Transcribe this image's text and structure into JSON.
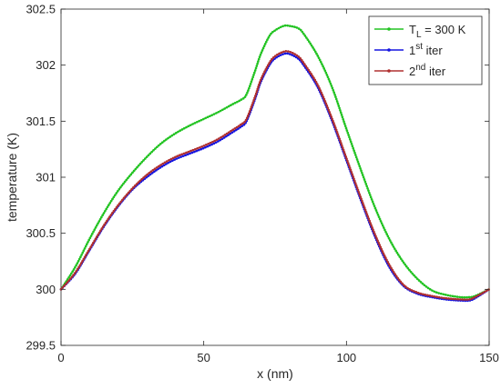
{
  "chart_data": {
    "type": "line",
    "xlabel": "x (nm)",
    "ylabel": "temperature (K)",
    "xlim": [
      0,
      150
    ],
    "ylim": [
      299.5,
      302.5
    ],
    "x_ticks": [
      "0",
      "50",
      "100",
      "150"
    ],
    "y_ticks": [
      "299.5",
      "300",
      "300.5",
      "301",
      "301.5",
      "302",
      "302.5"
    ],
    "legend_position": "top-right",
    "series": [
      {
        "name_parts": {
          "base": "T",
          "sub": "L",
          "rest": " = 300 K"
        },
        "color": "#22c322",
        "x": [
          0,
          5,
          10,
          15,
          20,
          25,
          30,
          35,
          40,
          45,
          50,
          55,
          60,
          63,
          65,
          68,
          70,
          73,
          75,
          78,
          80,
          83,
          85,
          90,
          95,
          100,
          105,
          110,
          115,
          120,
          125,
          130,
          135,
          140,
          143,
          145,
          150
        ],
        "y": [
          300.0,
          300.2,
          300.45,
          300.68,
          300.88,
          301.04,
          301.18,
          301.3,
          301.39,
          301.46,
          301.52,
          301.58,
          301.65,
          301.69,
          301.74,
          301.95,
          302.1,
          302.26,
          302.31,
          302.35,
          302.35,
          302.33,
          302.28,
          302.08,
          301.8,
          301.43,
          301.07,
          300.73,
          300.45,
          300.24,
          300.09,
          299.99,
          299.95,
          299.93,
          299.93,
          299.94,
          300.0
        ]
      },
      {
        "name_parts": {
          "base": "1",
          "sup": "st",
          "rest": " iter"
        },
        "color": "#1515e0",
        "x": [
          0,
          5,
          10,
          15,
          20,
          25,
          30,
          35,
          40,
          45,
          50,
          55,
          60,
          63,
          65,
          68,
          70,
          73,
          75,
          78,
          80,
          83,
          85,
          90,
          95,
          100,
          105,
          110,
          115,
          120,
          125,
          130,
          135,
          140,
          143,
          145,
          150
        ],
        "y": [
          300.0,
          300.14,
          300.35,
          300.56,
          300.74,
          300.89,
          301.0,
          301.09,
          301.16,
          301.21,
          301.26,
          301.32,
          301.4,
          301.45,
          301.5,
          301.7,
          301.85,
          302.0,
          302.06,
          302.1,
          302.1,
          302.06,
          302.0,
          301.8,
          301.5,
          301.15,
          300.8,
          300.47,
          300.2,
          300.03,
          299.96,
          299.93,
          299.91,
          299.9,
          299.9,
          299.92,
          300.0
        ]
      },
      {
        "name_parts": {
          "base": "2",
          "sup": "nd",
          "rest": " iter"
        },
        "color": "#b03030",
        "x": [
          0,
          5,
          10,
          15,
          20,
          25,
          30,
          35,
          40,
          45,
          50,
          55,
          60,
          63,
          65,
          68,
          70,
          73,
          75,
          78,
          80,
          83,
          85,
          90,
          95,
          100,
          105,
          110,
          115,
          120,
          125,
          130,
          135,
          140,
          143,
          145,
          150
        ],
        "y": [
          300.0,
          300.15,
          300.36,
          300.57,
          300.75,
          300.9,
          301.02,
          301.11,
          301.18,
          301.23,
          301.28,
          301.34,
          301.42,
          301.47,
          301.52,
          301.72,
          301.87,
          302.02,
          302.08,
          302.12,
          302.12,
          302.08,
          302.02,
          301.82,
          301.52,
          301.17,
          300.82,
          300.49,
          300.22,
          300.04,
          299.97,
          299.94,
          299.92,
          299.91,
          299.91,
          299.93,
          300.0
        ]
      }
    ]
  }
}
